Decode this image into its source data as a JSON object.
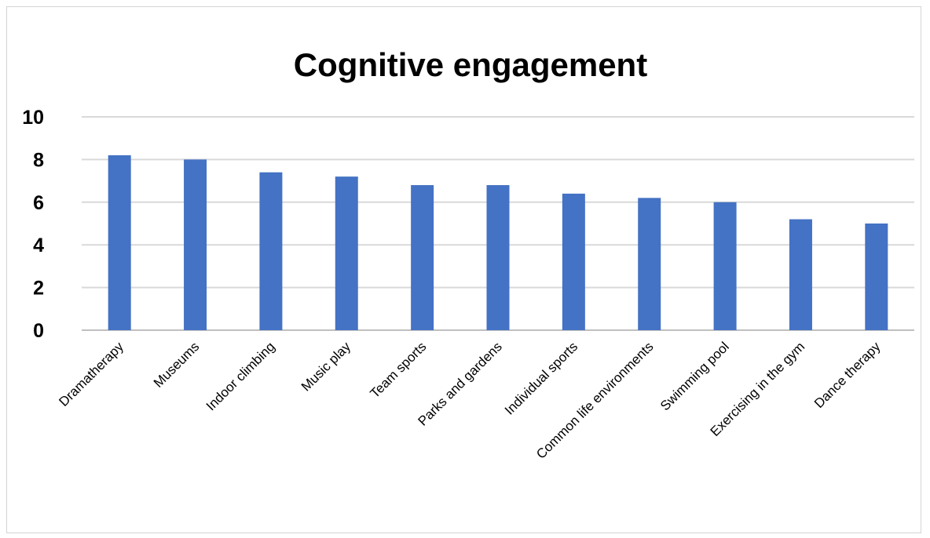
{
  "chart_data": {
    "type": "bar",
    "title": "Cognitive engagement",
    "xlabel": "",
    "ylabel": "",
    "categories": [
      "Dramatherapy",
      "Museums",
      "Indoor climbing",
      "Music play",
      "Team sports",
      "Parks and gardens",
      "Individual sports",
      "Common life environments",
      "Swimming pool",
      "Exercising in the gym",
      "Dance therapy"
    ],
    "values": [
      8.2,
      8.0,
      7.4,
      7.2,
      6.8,
      6.8,
      6.4,
      6.2,
      6.0,
      5.2,
      5.0
    ],
    "ylim": [
      0,
      10
    ],
    "yticks": [
      0,
      2,
      4,
      6,
      8,
      10
    ],
    "grid": true,
    "legend": "none",
    "bar_color": "#4472C4"
  }
}
